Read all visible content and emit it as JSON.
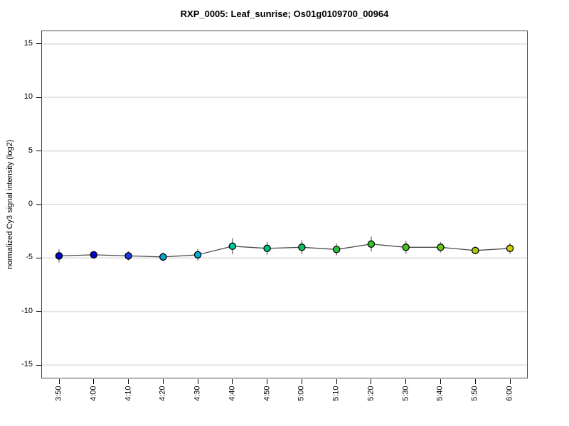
{
  "figure": {
    "background_color": "#ffffff"
  },
  "chart_data": {
    "type": "line",
    "title": "RXP_0005: Leaf_sunrise; Os01g0109700_00964",
    "xlabel": "",
    "ylabel": "normalized Cy3 signal intensity (log2)",
    "categories": [
      "3:50",
      "4:00",
      "4:10",
      "4:20",
      "4:30",
      "4:40",
      "4:50",
      "5:00",
      "5:10",
      "5:20",
      "5:30",
      "5:40",
      "5:50",
      "6:00"
    ],
    "values": [
      -4.8,
      -4.7,
      -4.8,
      -4.9,
      -4.7,
      -3.9,
      -4.1,
      -4.0,
      -4.2,
      -3.7,
      -4.0,
      -4.0,
      -4.3,
      -4.1
    ],
    "errors": [
      0.6,
      0.3,
      0.45,
      0.4,
      0.55,
      0.75,
      0.6,
      0.65,
      0.55,
      0.7,
      0.6,
      0.5,
      0.3,
      0.5
    ],
    "point_colors": [
      "#0000C8",
      "#0000D7",
      "#1E3CDC",
      "#00A5CD",
      "#00AFD7",
      "#00C896",
      "#00C377",
      "#0FBE5F",
      "#28C341",
      "#2FC828",
      "#46C31E",
      "#64C814",
      "#A5C80A",
      "#D2CD00"
    ],
    "yticks": [
      15,
      10,
      5,
      0,
      -5,
      -10,
      -15
    ],
    "ylim": [
      -16.25,
      16.25
    ],
    "grid": "horizontal",
    "gridline_color": "#e4e4e4",
    "line_color": "#4d4d4d",
    "errorbar_color": "#858585",
    "marker_outline": "#000000",
    "legend": "none",
    "x_tick_rotation": -90
  }
}
